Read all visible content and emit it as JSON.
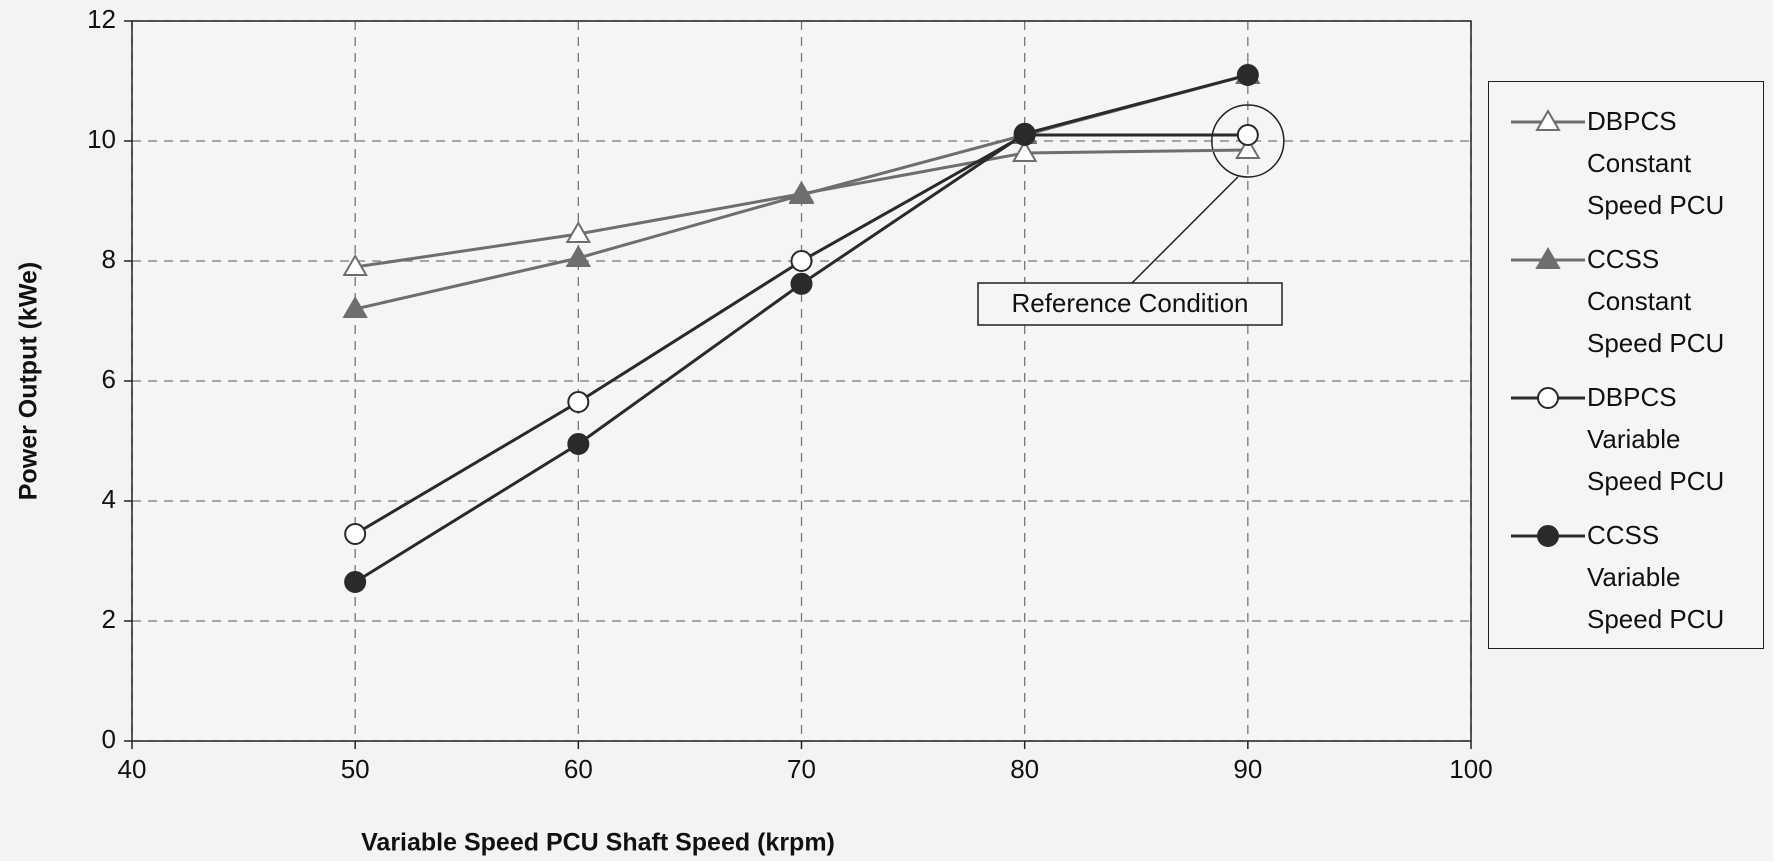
{
  "chart_data": {
    "type": "line",
    "x_label": "Variable Speed PCU Shaft Speed (krpm)",
    "y_label": "Power Output (kWe)",
    "x": [
      50,
      60,
      70,
      80,
      90
    ],
    "series": [
      {
        "name": "DBPCS Constant Speed PCU",
        "color": "#6e6e6e",
        "marker": "triangle-open",
        "values": [
          7.9,
          8.45,
          9.12,
          9.8,
          9.85
        ]
      },
      {
        "name": "CCSS Constant Speed PCU",
        "color": "#6e6e6e",
        "marker": "triangle-filled",
        "values": [
          7.2,
          8.05,
          9.1,
          10.1,
          11.1
        ]
      },
      {
        "name": "DBPCS Variable Speed PCU",
        "color": "#2a2a2a",
        "marker": "circle-open",
        "values": [
          3.45,
          5.65,
          8.0,
          10.1,
          10.1
        ]
      },
      {
        "name": "CCSS Variable Speed PCU",
        "color": "#2a2a2a",
        "marker": "circle-filled",
        "values": [
          2.65,
          4.95,
          7.62,
          10.12,
          11.1
        ]
      }
    ],
    "annotation": {
      "text": "Reference Condition",
      "x": 90,
      "y": 10
    },
    "xlim": [
      40,
      100
    ],
    "xticks": [
      40,
      50,
      60,
      70,
      80,
      90,
      100
    ],
    "ylim": [
      0,
      12
    ],
    "yticks": [
      0,
      2,
      4,
      6,
      8,
      10,
      12
    ],
    "grid": true,
    "legend": "right"
  }
}
